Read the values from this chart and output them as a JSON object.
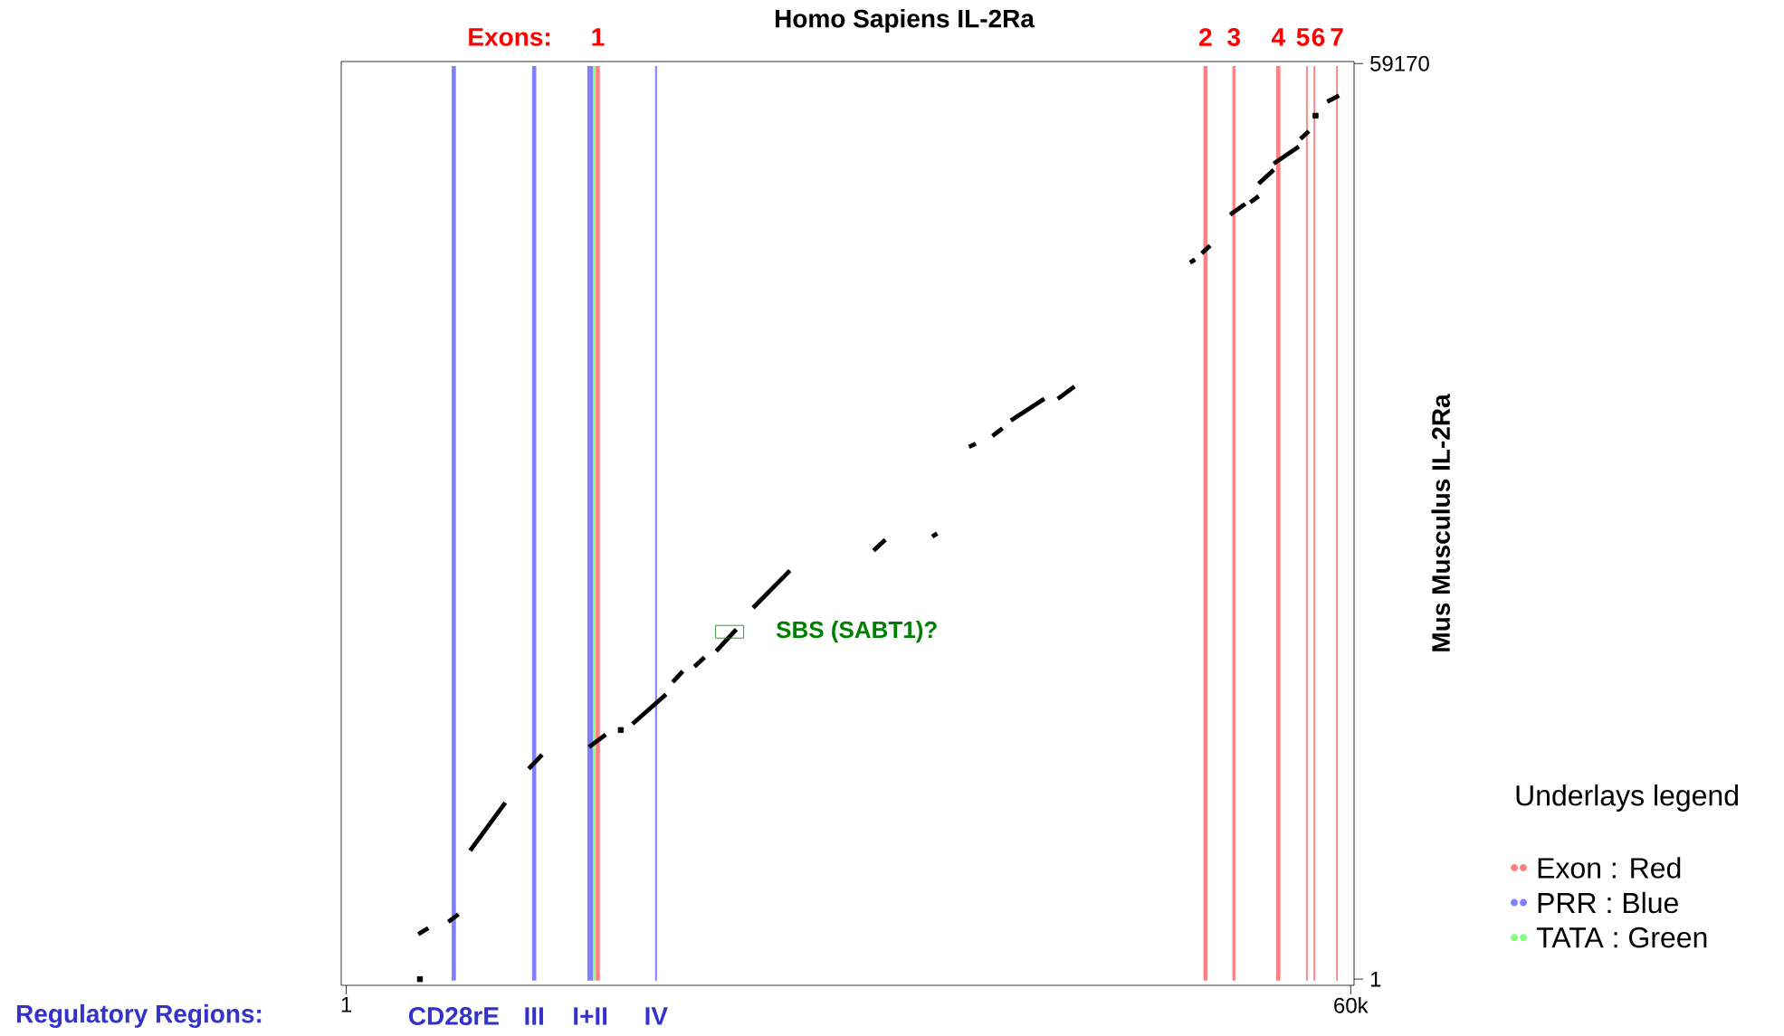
{
  "chart_data": {
    "type": "line",
    "title": "Homo Sapiens IL-2Ra",
    "ylabel": "Mus Musculus  IL-2Ra",
    "legend_title": "Underlays legend",
    "legend": "right",
    "xlim": [
      -300,
      60200
    ],
    "ylim": [
      -400,
      59300
    ],
    "xticks": [
      1,
      {
        "value": 60000,
        "label": "60k"
      }
    ],
    "yticks": [
      1,
      59170
    ],
    "series": [
      {
        "color": "#000000",
        "x": [
          4300,
          4900,
          null,
          6100,
          6700,
          null,
          7400,
          9500,
          null,
          10900,
          11700,
          null,
          14500,
          15500,
          null,
          17100,
          19100,
          null,
          19500,
          20100,
          null,
          20800,
          21400,
          null,
          22100,
          23300,
          null,
          24300,
          26500,
          null,
          31500,
          32200,
          null,
          35000,
          35300,
          null,
          37200,
          37600,
          null,
          38600,
          39200,
          null,
          39700,
          41700,
          null,
          42500,
          43500,
          null,
          50400,
          50700,
          null,
          51100,
          51600,
          null,
          52800,
          53700,
          null,
          54000,
          54500,
          null,
          54500,
          55400,
          null,
          55400,
          56900,
          null,
          57000,
          57500,
          null,
          58600,
          59300
        ],
        "values": [
          2900,
          3300,
          null,
          3700,
          4200,
          null,
          8300,
          11400,
          null,
          13600,
          14500,
          null,
          15000,
          15800,
          null,
          16500,
          18400,
          null,
          19200,
          19900,
          null,
          20200,
          20800,
          null,
          21200,
          22600,
          null,
          24000,
          26400,
          null,
          27700,
          28400,
          null,
          28600,
          28800,
          null,
          34400,
          34600,
          null,
          35100,
          35600,
          null,
          36100,
          37500,
          null,
          37500,
          38300,
          null,
          46300,
          46500,
          null,
          46900,
          47400,
          null,
          49400,
          50100,
          null,
          50200,
          50600,
          null,
          51400,
          52300,
          null,
          52700,
          53800,
          null,
          54300,
          54800,
          null,
          56700,
          57100
        ]
      },
      {
        "type": "scatter",
        "color": "#000000",
        "x": [
          4400,
          16400,
          57900
        ],
        "values": [
          0,
          16100,
          55800
        ]
      }
    ],
    "bands": [
      {
        "axis": "x",
        "from": 14900,
        "to": 15150,
        "label": "1",
        "color": "#ff8080"
      },
      {
        "axis": "x",
        "from": 51200,
        "to": 51450,
        "label": "2",
        "color": "#ff8080"
      },
      {
        "axis": "x",
        "from": 52930,
        "to": 53110,
        "label": "3",
        "color": "#ff8080"
      },
      {
        "axis": "x",
        "from": 55550,
        "to": 55800,
        "label": "4",
        "color": "#ff8080"
      },
      {
        "axis": "x",
        "from": 57330,
        "to": 57430,
        "label": "5",
        "color": "#ff8080"
      },
      {
        "axis": "x",
        "from": 57780,
        "to": 57880,
        "label": "6",
        "color": "#ff8080"
      },
      {
        "axis": "x",
        "from": 59130,
        "to": 59230,
        "label": "7",
        "color": "#ff8080"
      },
      {
        "axis": "x",
        "from": 6300,
        "to": 6550,
        "label": "CD28rE",
        "color": "#8080ff"
      },
      {
        "axis": "x",
        "from": 11100,
        "to": 11350,
        "label": "III",
        "color": "#8080ff"
      },
      {
        "axis": "x",
        "from": 14400,
        "to": 14750,
        "label": "I+II",
        "color": "#8080ff"
      },
      {
        "axis": "x",
        "from": 18450,
        "to": 18560,
        "label": "IV",
        "color": "#8080ff"
      },
      {
        "axis": "x",
        "from": 14750,
        "to": 14880,
        "color": "#80ff80"
      }
    ],
    "annotations": [
      {
        "text": "SBS (SABT1)?",
        "x": 22900,
        "y": 22450
      },
      "Exons:",
      "Regulatory Regions:",
      "Exon : Red",
      "PRR : Blue",
      "TATA : Green"
    ]
  }
}
